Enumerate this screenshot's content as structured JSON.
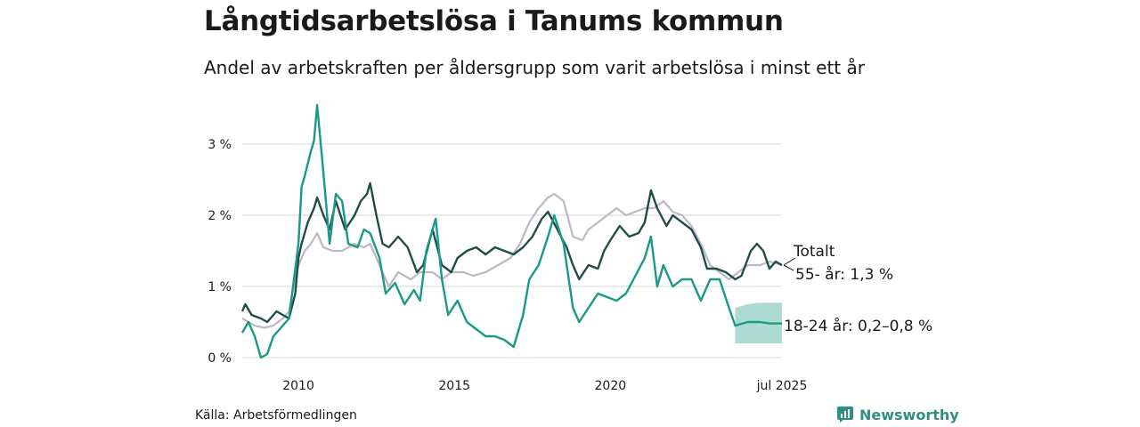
{
  "title": "Långtidsarbetslösa i Tanums kommun",
  "subtitle": "Andel av arbetskraften per åldersgrupp som varit arbetslösa i minst ett år",
  "source": "Källa: Arbetsförmedlingen",
  "brand": "Newsworthy",
  "colors": {
    "total": "#bdb8c4",
    "age55": "#1f4e48",
    "age18": "#1a9a86",
    "band": "#9fd3c9",
    "grid": "#dddddd"
  },
  "chart_data": {
    "type": "line",
    "x_range": [
      2008.2,
      2025.5
    ],
    "ylim": [
      0,
      3.6
    ],
    "y_ticks": [
      {
        "v": 0,
        "label": "0 %"
      },
      {
        "v": 1,
        "label": "1 %"
      },
      {
        "v": 2,
        "label": "2 %"
      },
      {
        "v": 3,
        "label": "3 %"
      }
    ],
    "x_ticks": [
      {
        "v": 2010,
        "label": "2010"
      },
      {
        "v": 2015,
        "label": "2015"
      },
      {
        "v": 2020,
        "label": "2020"
      },
      {
        "v": 2025.5,
        "label": "jul 2025"
      }
    ],
    "series": [
      {
        "name": "Totalt",
        "label": "Totalt",
        "color": "#bdb8c4",
        "points": [
          [
            2008.2,
            0.55
          ],
          [
            2008.6,
            0.45
          ],
          [
            2008.9,
            0.42
          ],
          [
            2009.2,
            0.45
          ],
          [
            2009.5,
            0.55
          ],
          [
            2009.7,
            0.65
          ],
          [
            2009.8,
            0.9
          ],
          [
            2010.0,
            1.3
          ],
          [
            2010.2,
            1.5
          ],
          [
            2010.4,
            1.6
          ],
          [
            2010.6,
            1.75
          ],
          [
            2010.8,
            1.55
          ],
          [
            2011.1,
            1.5
          ],
          [
            2011.4,
            1.5
          ],
          [
            2011.8,
            1.6
          ],
          [
            2012.1,
            1.55
          ],
          [
            2012.3,
            1.6
          ],
          [
            2012.6,
            1.3
          ],
          [
            2012.9,
            1.0
          ],
          [
            2013.2,
            1.2
          ],
          [
            2013.6,
            1.1
          ],
          [
            2013.9,
            1.2
          ],
          [
            2014.3,
            1.2
          ],
          [
            2014.6,
            1.1
          ],
          [
            2014.9,
            1.2
          ],
          [
            2015.3,
            1.2
          ],
          [
            2015.6,
            1.15
          ],
          [
            2016.0,
            1.2
          ],
          [
            2016.4,
            1.3
          ],
          [
            2016.8,
            1.4
          ],
          [
            2017.1,
            1.6
          ],
          [
            2017.4,
            1.9
          ],
          [
            2017.7,
            2.1
          ],
          [
            2018.0,
            2.25
          ],
          [
            2018.2,
            2.3
          ],
          [
            2018.5,
            2.2
          ],
          [
            2018.8,
            1.7
          ],
          [
            2019.1,
            1.65
          ],
          [
            2019.3,
            1.8
          ],
          [
            2019.6,
            1.9
          ],
          [
            2019.9,
            2.0
          ],
          [
            2020.2,
            2.1
          ],
          [
            2020.5,
            2.0
          ],
          [
            2020.8,
            2.05
          ],
          [
            2021.1,
            2.1
          ],
          [
            2021.4,
            2.1
          ],
          [
            2021.7,
            2.2
          ],
          [
            2022.0,
            2.05
          ],
          [
            2022.3,
            2.0
          ],
          [
            2022.6,
            1.85
          ],
          [
            2022.9,
            1.6
          ],
          [
            2023.2,
            1.3
          ],
          [
            2023.5,
            1.2
          ],
          [
            2023.8,
            1.1
          ],
          [
            2024.1,
            1.2
          ],
          [
            2024.4,
            1.3
          ],
          [
            2024.8,
            1.3
          ],
          [
            2025.1,
            1.35
          ],
          [
            2025.5,
            1.3
          ]
        ]
      },
      {
        "name": "55- år",
        "label": "55- år: 1,3 %",
        "color": "#1f4e48",
        "points": [
          [
            2008.2,
            0.65
          ],
          [
            2008.3,
            0.75
          ],
          [
            2008.5,
            0.6
          ],
          [
            2008.8,
            0.55
          ],
          [
            2009.0,
            0.5
          ],
          [
            2009.3,
            0.65
          ],
          [
            2009.5,
            0.6
          ],
          [
            2009.7,
            0.55
          ],
          [
            2009.9,
            0.9
          ],
          [
            2010.0,
            1.4
          ],
          [
            2010.1,
            1.6
          ],
          [
            2010.3,
            1.9
          ],
          [
            2010.5,
            2.1
          ],
          [
            2010.6,
            2.25
          ],
          [
            2010.8,
            2.0
          ],
          [
            2011.0,
            1.8
          ],
          [
            2011.2,
            2.2
          ],
          [
            2011.5,
            1.8
          ],
          [
            2011.8,
            2.0
          ],
          [
            2012.0,
            2.2
          ],
          [
            2012.2,
            2.3
          ],
          [
            2012.3,
            2.45
          ],
          [
            2012.5,
            2.0
          ],
          [
            2012.7,
            1.6
          ],
          [
            2012.9,
            1.55
          ],
          [
            2013.2,
            1.7
          ],
          [
            2013.5,
            1.55
          ],
          [
            2013.8,
            1.2
          ],
          [
            2014.0,
            1.3
          ],
          [
            2014.3,
            1.8
          ],
          [
            2014.6,
            1.3
          ],
          [
            2014.9,
            1.2
          ],
          [
            2015.1,
            1.4
          ],
          [
            2015.4,
            1.5
          ],
          [
            2015.7,
            1.55
          ],
          [
            2016.0,
            1.45
          ],
          [
            2016.3,
            1.55
          ],
          [
            2016.6,
            1.5
          ],
          [
            2016.9,
            1.45
          ],
          [
            2017.2,
            1.55
          ],
          [
            2017.5,
            1.7
          ],
          [
            2017.8,
            1.95
          ],
          [
            2018.0,
            2.05
          ],
          [
            2018.3,
            1.8
          ],
          [
            2018.6,
            1.55
          ],
          [
            2018.8,
            1.3
          ],
          [
            2019.0,
            1.1
          ],
          [
            2019.3,
            1.3
          ],
          [
            2019.6,
            1.25
          ],
          [
            2019.8,
            1.5
          ],
          [
            2020.0,
            1.65
          ],
          [
            2020.3,
            1.85
          ],
          [
            2020.6,
            1.7
          ],
          [
            2020.9,
            1.75
          ],
          [
            2021.1,
            1.9
          ],
          [
            2021.3,
            2.35
          ],
          [
            2021.5,
            2.1
          ],
          [
            2021.8,
            1.85
          ],
          [
            2022.0,
            2.0
          ],
          [
            2022.3,
            1.9
          ],
          [
            2022.6,
            1.8
          ],
          [
            2022.9,
            1.55
          ],
          [
            2023.1,
            1.25
          ],
          [
            2023.4,
            1.25
          ],
          [
            2023.7,
            1.2
          ],
          [
            2024.0,
            1.1
          ],
          [
            2024.2,
            1.15
          ],
          [
            2024.5,
            1.5
          ],
          [
            2024.7,
            1.6
          ],
          [
            2024.9,
            1.5
          ],
          [
            2025.1,
            1.25
          ],
          [
            2025.3,
            1.35
          ],
          [
            2025.5,
            1.3
          ]
        ]
      },
      {
        "name": "18-24 år",
        "label": "18-24 år: 0,2–0,8 %",
        "color": "#1a9a86",
        "points": [
          [
            2008.2,
            0.35
          ],
          [
            2008.4,
            0.5
          ],
          [
            2008.6,
            0.3
          ],
          [
            2008.8,
            0.0
          ],
          [
            2009.0,
            0.05
          ],
          [
            2009.2,
            0.3
          ],
          [
            2009.5,
            0.45
          ],
          [
            2009.7,
            0.55
          ],
          [
            2009.8,
            0.9
          ],
          [
            2010.0,
            1.6
          ],
          [
            2010.1,
            2.4
          ],
          [
            2010.2,
            2.55
          ],
          [
            2010.4,
            2.9
          ],
          [
            2010.5,
            3.05
          ],
          [
            2010.6,
            3.55
          ],
          [
            2010.8,
            2.6
          ],
          [
            2011.0,
            1.6
          ],
          [
            2011.2,
            2.3
          ],
          [
            2011.4,
            2.2
          ],
          [
            2011.6,
            1.6
          ],
          [
            2011.9,
            1.55
          ],
          [
            2012.1,
            1.8
          ],
          [
            2012.3,
            1.75
          ],
          [
            2012.6,
            1.4
          ],
          [
            2012.8,
            0.9
          ],
          [
            2013.1,
            1.05
          ],
          [
            2013.4,
            0.75
          ],
          [
            2013.7,
            0.95
          ],
          [
            2013.9,
            0.8
          ],
          [
            2014.1,
            1.5
          ],
          [
            2014.4,
            1.95
          ],
          [
            2014.6,
            1.1
          ],
          [
            2014.8,
            0.6
          ],
          [
            2015.1,
            0.8
          ],
          [
            2015.4,
            0.5
          ],
          [
            2015.7,
            0.4
          ],
          [
            2016.0,
            0.3
          ],
          [
            2016.3,
            0.3
          ],
          [
            2016.6,
            0.25
          ],
          [
            2016.9,
            0.15
          ],
          [
            2017.2,
            0.6
          ],
          [
            2017.4,
            1.1
          ],
          [
            2017.7,
            1.3
          ],
          [
            2018.0,
            1.7
          ],
          [
            2018.2,
            2.0
          ],
          [
            2018.5,
            1.6
          ],
          [
            2018.8,
            0.7
          ],
          [
            2019.0,
            0.5
          ],
          [
            2019.3,
            0.7
          ],
          [
            2019.6,
            0.9
          ],
          [
            2019.9,
            0.85
          ],
          [
            2020.2,
            0.8
          ],
          [
            2020.5,
            0.9
          ],
          [
            2020.8,
            1.15
          ],
          [
            2021.1,
            1.4
          ],
          [
            2021.3,
            1.7
          ],
          [
            2021.5,
            1.0
          ],
          [
            2021.7,
            1.3
          ],
          [
            2022.0,
            1.0
          ],
          [
            2022.3,
            1.1
          ],
          [
            2022.6,
            1.1
          ],
          [
            2022.9,
            0.8
          ],
          [
            2023.2,
            1.1
          ],
          [
            2023.5,
            1.1
          ],
          [
            2023.8,
            0.7
          ],
          [
            2024.0,
            0.45
          ],
          [
            2024.4,
            0.5
          ],
          [
            2024.8,
            0.5
          ],
          [
            2025.1,
            0.48
          ],
          [
            2025.5,
            0.48
          ]
        ]
      }
    ],
    "band": {
      "name": "18-24 år",
      "color": "#9fd3c9",
      "points": [
        [
          2024.0,
          0.2,
          0.7
        ],
        [
          2024.4,
          0.2,
          0.75
        ],
        [
          2024.7,
          0.2,
          0.77
        ],
        [
          2024.8,
          0.2,
          0.77
        ],
        [
          2025.1,
          0.2,
          0.77
        ],
        [
          2025.5,
          0.2,
          0.77
        ]
      ]
    },
    "grid": true
  }
}
